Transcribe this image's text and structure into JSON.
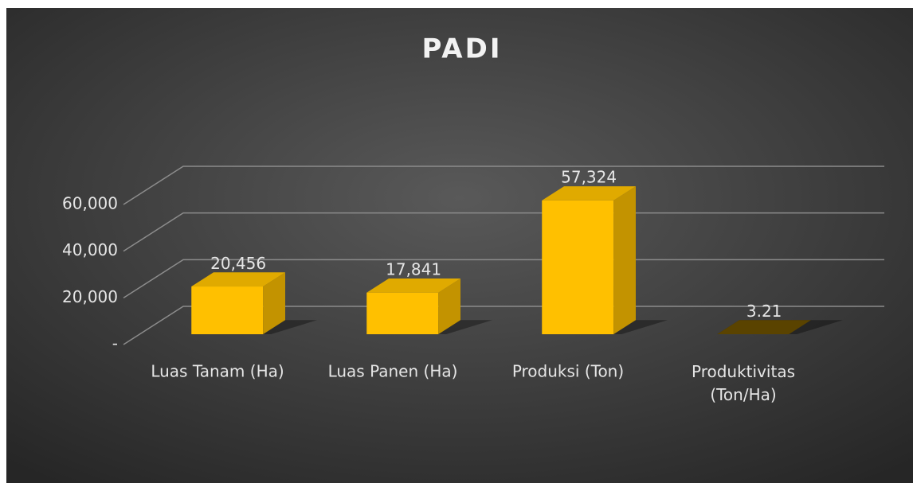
{
  "chart_data": {
    "type": "bar3d",
    "title": "PADI",
    "categories": [
      "Luas Tanam (Ha)",
      "Luas Panen (Ha)",
      "Produksi (Ton)",
      "Produktivitas (Ton/Ha)"
    ],
    "values": [
      20456,
      17841,
      57324,
      3.21
    ],
    "value_labels": [
      "20,456",
      "17,841",
      "57,324",
      "3.21"
    ],
    "color": "#ffc000",
    "ylim": [
      0,
      60000
    ],
    "yticks": [
      {
        "value": 0,
        "label": "-"
      },
      {
        "value": 20000,
        "label": "20,000"
      },
      {
        "value": 40000,
        "label": "40,000"
      },
      {
        "value": 60000,
        "label": "60,000"
      }
    ],
    "grid": true
  }
}
